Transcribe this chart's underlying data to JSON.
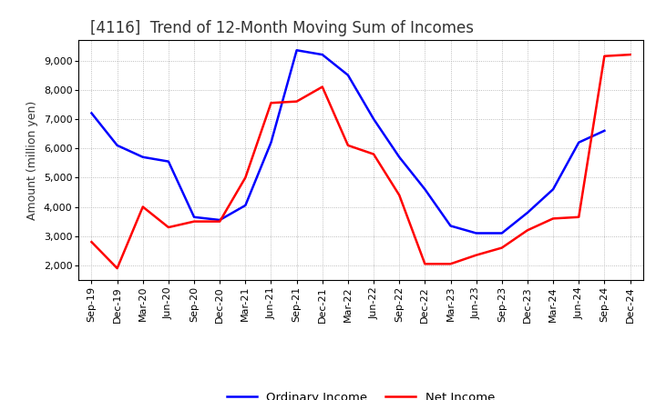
{
  "title": "[4116]  Trend of 12-Month Moving Sum of Incomes",
  "ylabel": "Amount (million yen)",
  "x_labels": [
    "Sep-19",
    "Dec-19",
    "Mar-20",
    "Jun-20",
    "Sep-20",
    "Dec-20",
    "Mar-21",
    "Jun-21",
    "Sep-21",
    "Dec-21",
    "Mar-22",
    "Jun-22",
    "Sep-22",
    "Dec-22",
    "Mar-23",
    "Jun-23",
    "Sep-23",
    "Dec-23",
    "Mar-24",
    "Jun-24",
    "Sep-24",
    "Dec-24"
  ],
  "ordinary_income": [
    7200,
    6100,
    5700,
    5550,
    3650,
    3550,
    4050,
    6200,
    9350,
    9200,
    8500,
    7000,
    5700,
    4600,
    3350,
    3100,
    3100,
    3800,
    4600,
    6200,
    6600,
    null
  ],
  "net_income": [
    2800,
    1900,
    4000,
    3300,
    3500,
    3500,
    5000,
    7550,
    7600,
    8100,
    6100,
    5800,
    4400,
    2050,
    2050,
    2350,
    2600,
    3200,
    3600,
    3650,
    9150,
    9200
  ],
  "ordinary_color": "#0000FF",
  "net_color": "#FF0000",
  "ylim_min": 1500,
  "ylim_max": 9700,
  "yticks": [
    2000,
    3000,
    4000,
    5000,
    6000,
    7000,
    8000,
    9000
  ],
  "legend_labels": [
    "Ordinary Income",
    "Net Income"
  ],
  "background_color": "#FFFFFF",
  "grid_color": "#AAAAAA",
  "title_fontsize": 12,
  "ylabel_fontsize": 9,
  "tick_fontsize": 8
}
